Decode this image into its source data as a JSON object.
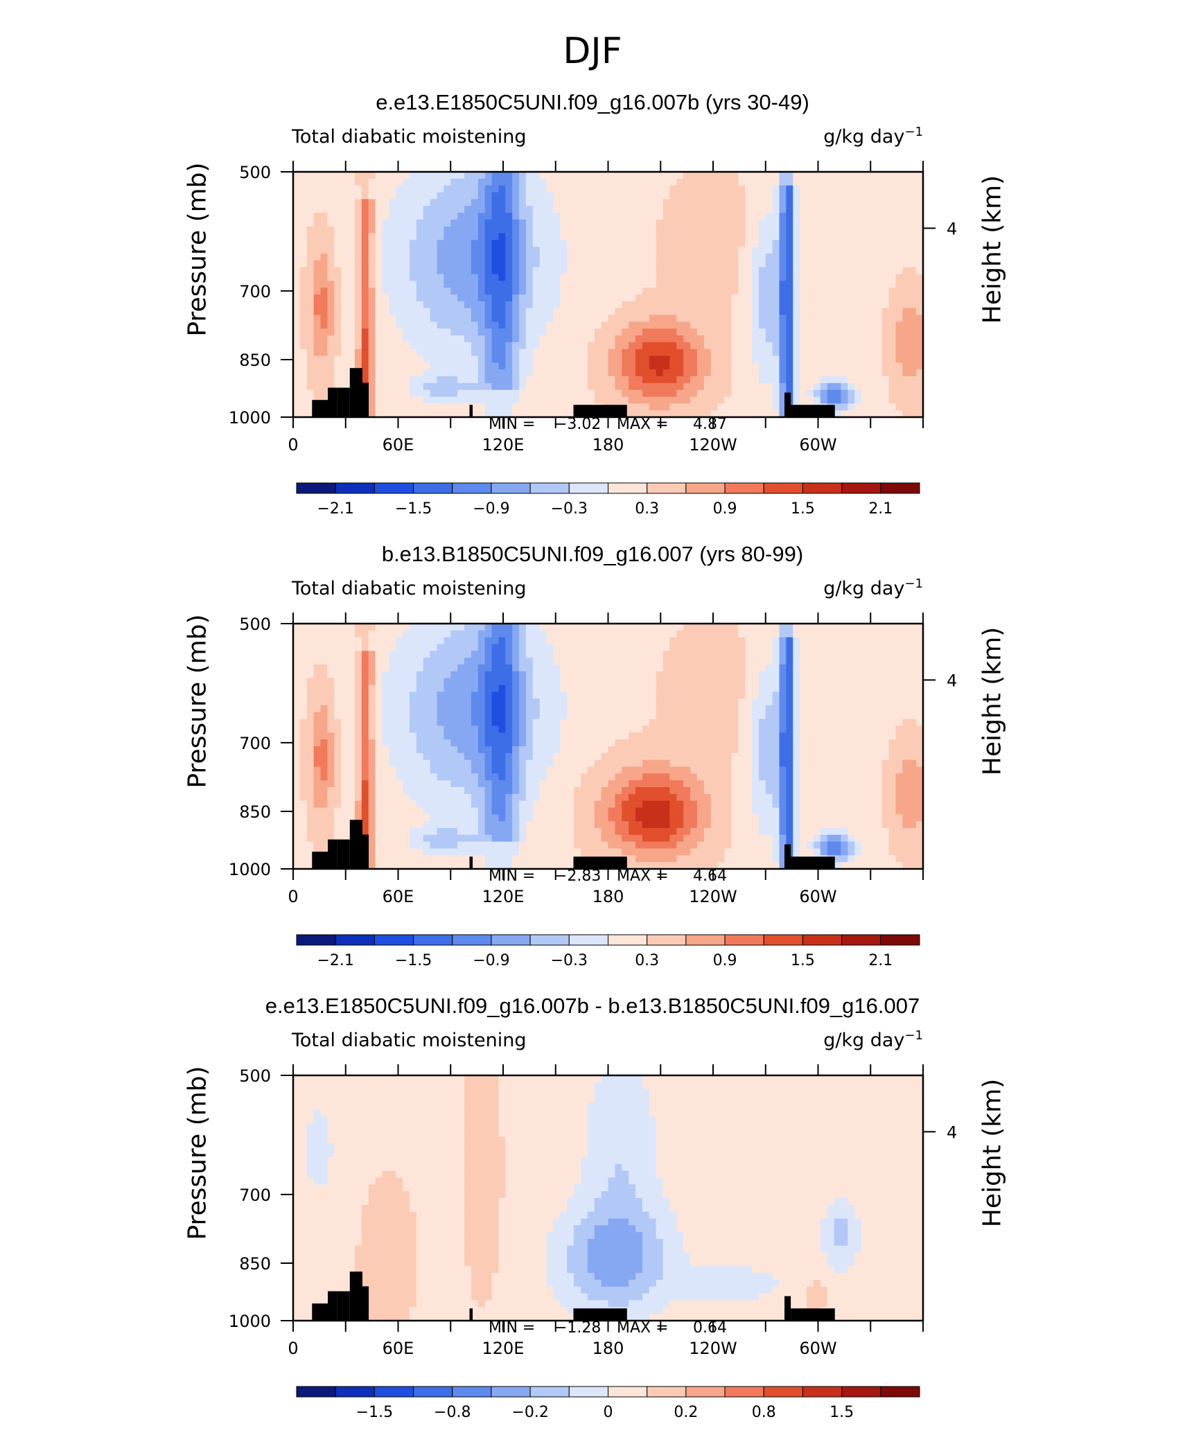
{
  "page_title": "DJF",
  "chart_data": [
    {
      "type": "heatmap",
      "title": "e.e13.E1850C5UNI.f09_g16.007b (yrs 30-49)",
      "left_label": "Total diabatic moistening",
      "units": "g/kg day",
      "units_exp": "−1",
      "ylabel": "Pressure (mb)",
      "ylabel_right": "Height (km)",
      "yticks": [
        "500",
        "700",
        "850",
        "1000"
      ],
      "yticks_right": [
        "4"
      ],
      "xticks": [
        "0",
        "60E",
        "120E",
        "180",
        "120W",
        "60W"
      ],
      "min_label": "MIN =",
      "min_value": "−3.02",
      "max_label": "MAX =",
      "max_value": "4.87",
      "colorbar_labels": [
        "−2.1",
        "−1.5",
        "−0.9",
        "−0.3",
        "0.3",
        "0.9",
        "1.5",
        "2.1"
      ]
    },
    {
      "type": "heatmap",
      "title": "b.e13.B1850C5UNI.f09_g16.007 (yrs 80-99)",
      "left_label": "Total diabatic moistening",
      "units": "g/kg day",
      "units_exp": "−1",
      "ylabel": "Pressure (mb)",
      "ylabel_right": "Height (km)",
      "yticks": [
        "500",
        "700",
        "850",
        "1000"
      ],
      "yticks_right": [
        "4"
      ],
      "xticks": [
        "0",
        "60E",
        "120E",
        "180",
        "120W",
        "60W"
      ],
      "min_label": "MIN =",
      "min_value": "−2.83",
      "max_label": "MAX =",
      "max_value": "4.64",
      "colorbar_labels": [
        "−2.1",
        "−1.5",
        "−0.9",
        "−0.3",
        "0.3",
        "0.9",
        "1.5",
        "2.1"
      ]
    },
    {
      "type": "heatmap",
      "title": "e.e13.E1850C5UNI.f09_g16.007b - b.e13.B1850C5UNI.f09_g16.007",
      "left_label": "Total diabatic moistening",
      "units": "g/kg day",
      "units_exp": "−1",
      "ylabel": "Pressure (mb)",
      "ylabel_right": "Height (km)",
      "yticks": [
        "500",
        "700",
        "850",
        "1000"
      ],
      "yticks_right": [
        "4"
      ],
      "xticks": [
        "0",
        "60E",
        "120E",
        "180",
        "120W",
        "60W"
      ],
      "min_label": "MIN =",
      "min_value": "−1.28",
      "max_label": "MAX =",
      "max_value": "0.64",
      "colorbar_labels": [
        "−1.5",
        "−0.8",
        "−0.2",
        "0",
        "0.2",
        "0.8",
        "1.5"
      ]
    }
  ],
  "colors": {
    "scale": [
      "#0b1a7a",
      "#0d2fbb",
      "#1f4fe0",
      "#3d6ee8",
      "#5e8aee",
      "#86a8f2",
      "#b2c8f6",
      "#dbe6fb",
      "#fde6d9",
      "#fbcbb6",
      "#f7a68a",
      "#f07a5b",
      "#e24f2c",
      "#c8301a",
      "#a5170f",
      "#7e0a08"
    ],
    "topography": "#000000"
  }
}
